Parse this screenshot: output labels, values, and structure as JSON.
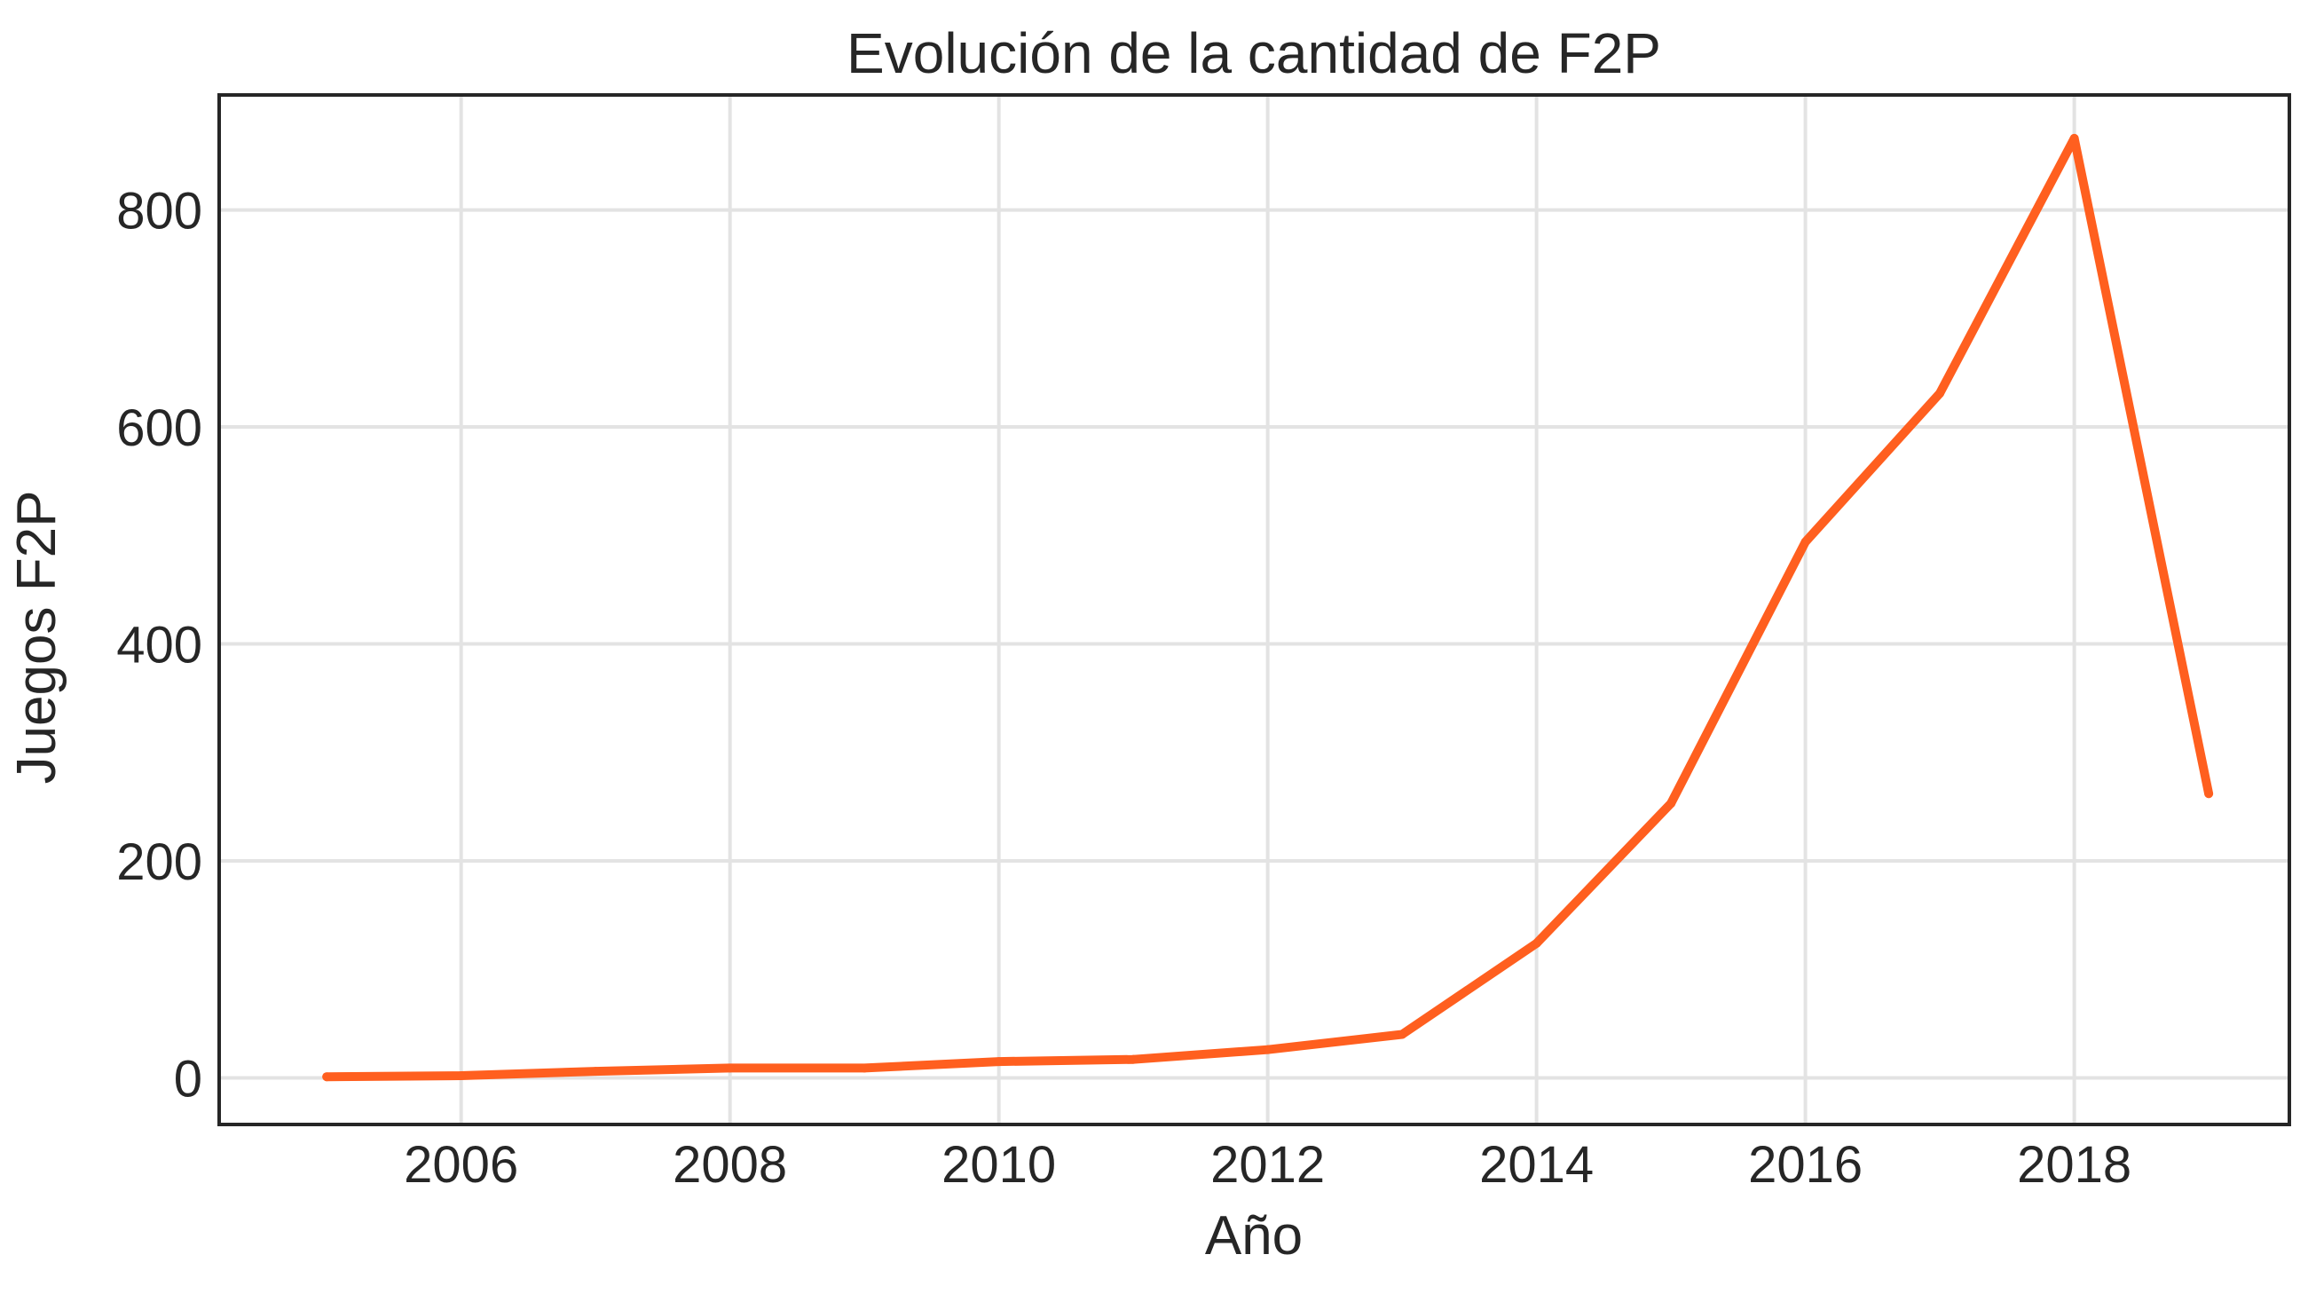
{
  "chart_data": {
    "type": "line",
    "title": "Evolución de la cantidad de F2P",
    "xlabel": "Año",
    "ylabel": "Juegos F2P",
    "xlim": [
      2004.2,
      2019.6
    ],
    "ylim": [
      -43,
      906
    ],
    "xticks": [
      2006,
      2008,
      2010,
      2012,
      2014,
      2016,
      2018
    ],
    "yticks": [
      0,
      200,
      400,
      600,
      800
    ],
    "grid": true,
    "legend": "none",
    "series": [
      {
        "color": "#ff5f1f",
        "x": [
          2005,
          2006,
          2007,
          2008,
          2009,
          2010,
          2011,
          2012,
          2013,
          2014,
          2015,
          2016,
          2017,
          2018,
          2019
        ],
        "y": [
          1,
          2,
          6,
          9,
          9,
          15,
          17,
          26,
          40,
          124,
          253,
          494,
          631,
          866,
          262
        ]
      }
    ]
  }
}
